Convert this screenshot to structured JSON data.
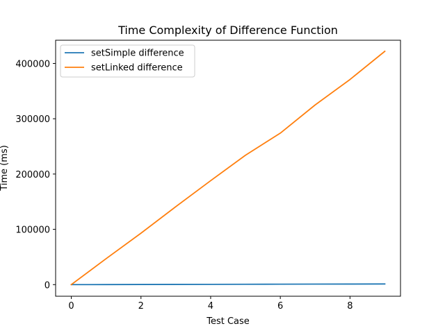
{
  "chart_data": {
    "type": "line",
    "title": "Time Complexity of Difference Function",
    "xlabel": "Test Case",
    "ylabel": "Time (ms)",
    "xlim": [
      -0.45,
      9.45
    ],
    "ylim": [
      -21000,
      442000
    ],
    "x": [
      0,
      1,
      2,
      3,
      4,
      5,
      6,
      7,
      8,
      9
    ],
    "xticks": [
      0,
      2,
      4,
      6,
      8
    ],
    "yticks": [
      0,
      100000,
      200000,
      300000,
      400000
    ],
    "legend_position": "top-left",
    "grid": false,
    "series": [
      {
        "name": "setSimple difference",
        "color": "#1f77b4",
        "values": [
          0,
          120,
          240,
          380,
          520,
          650,
          800,
          920,
          1050,
          1200
        ]
      },
      {
        "name": "setLinked difference",
        "color": "#ff7f0e",
        "values": [
          0,
          47000,
          93000,
          141000,
          188000,
          234000,
          274000,
          325000,
          371000,
          422000
        ]
      }
    ]
  }
}
